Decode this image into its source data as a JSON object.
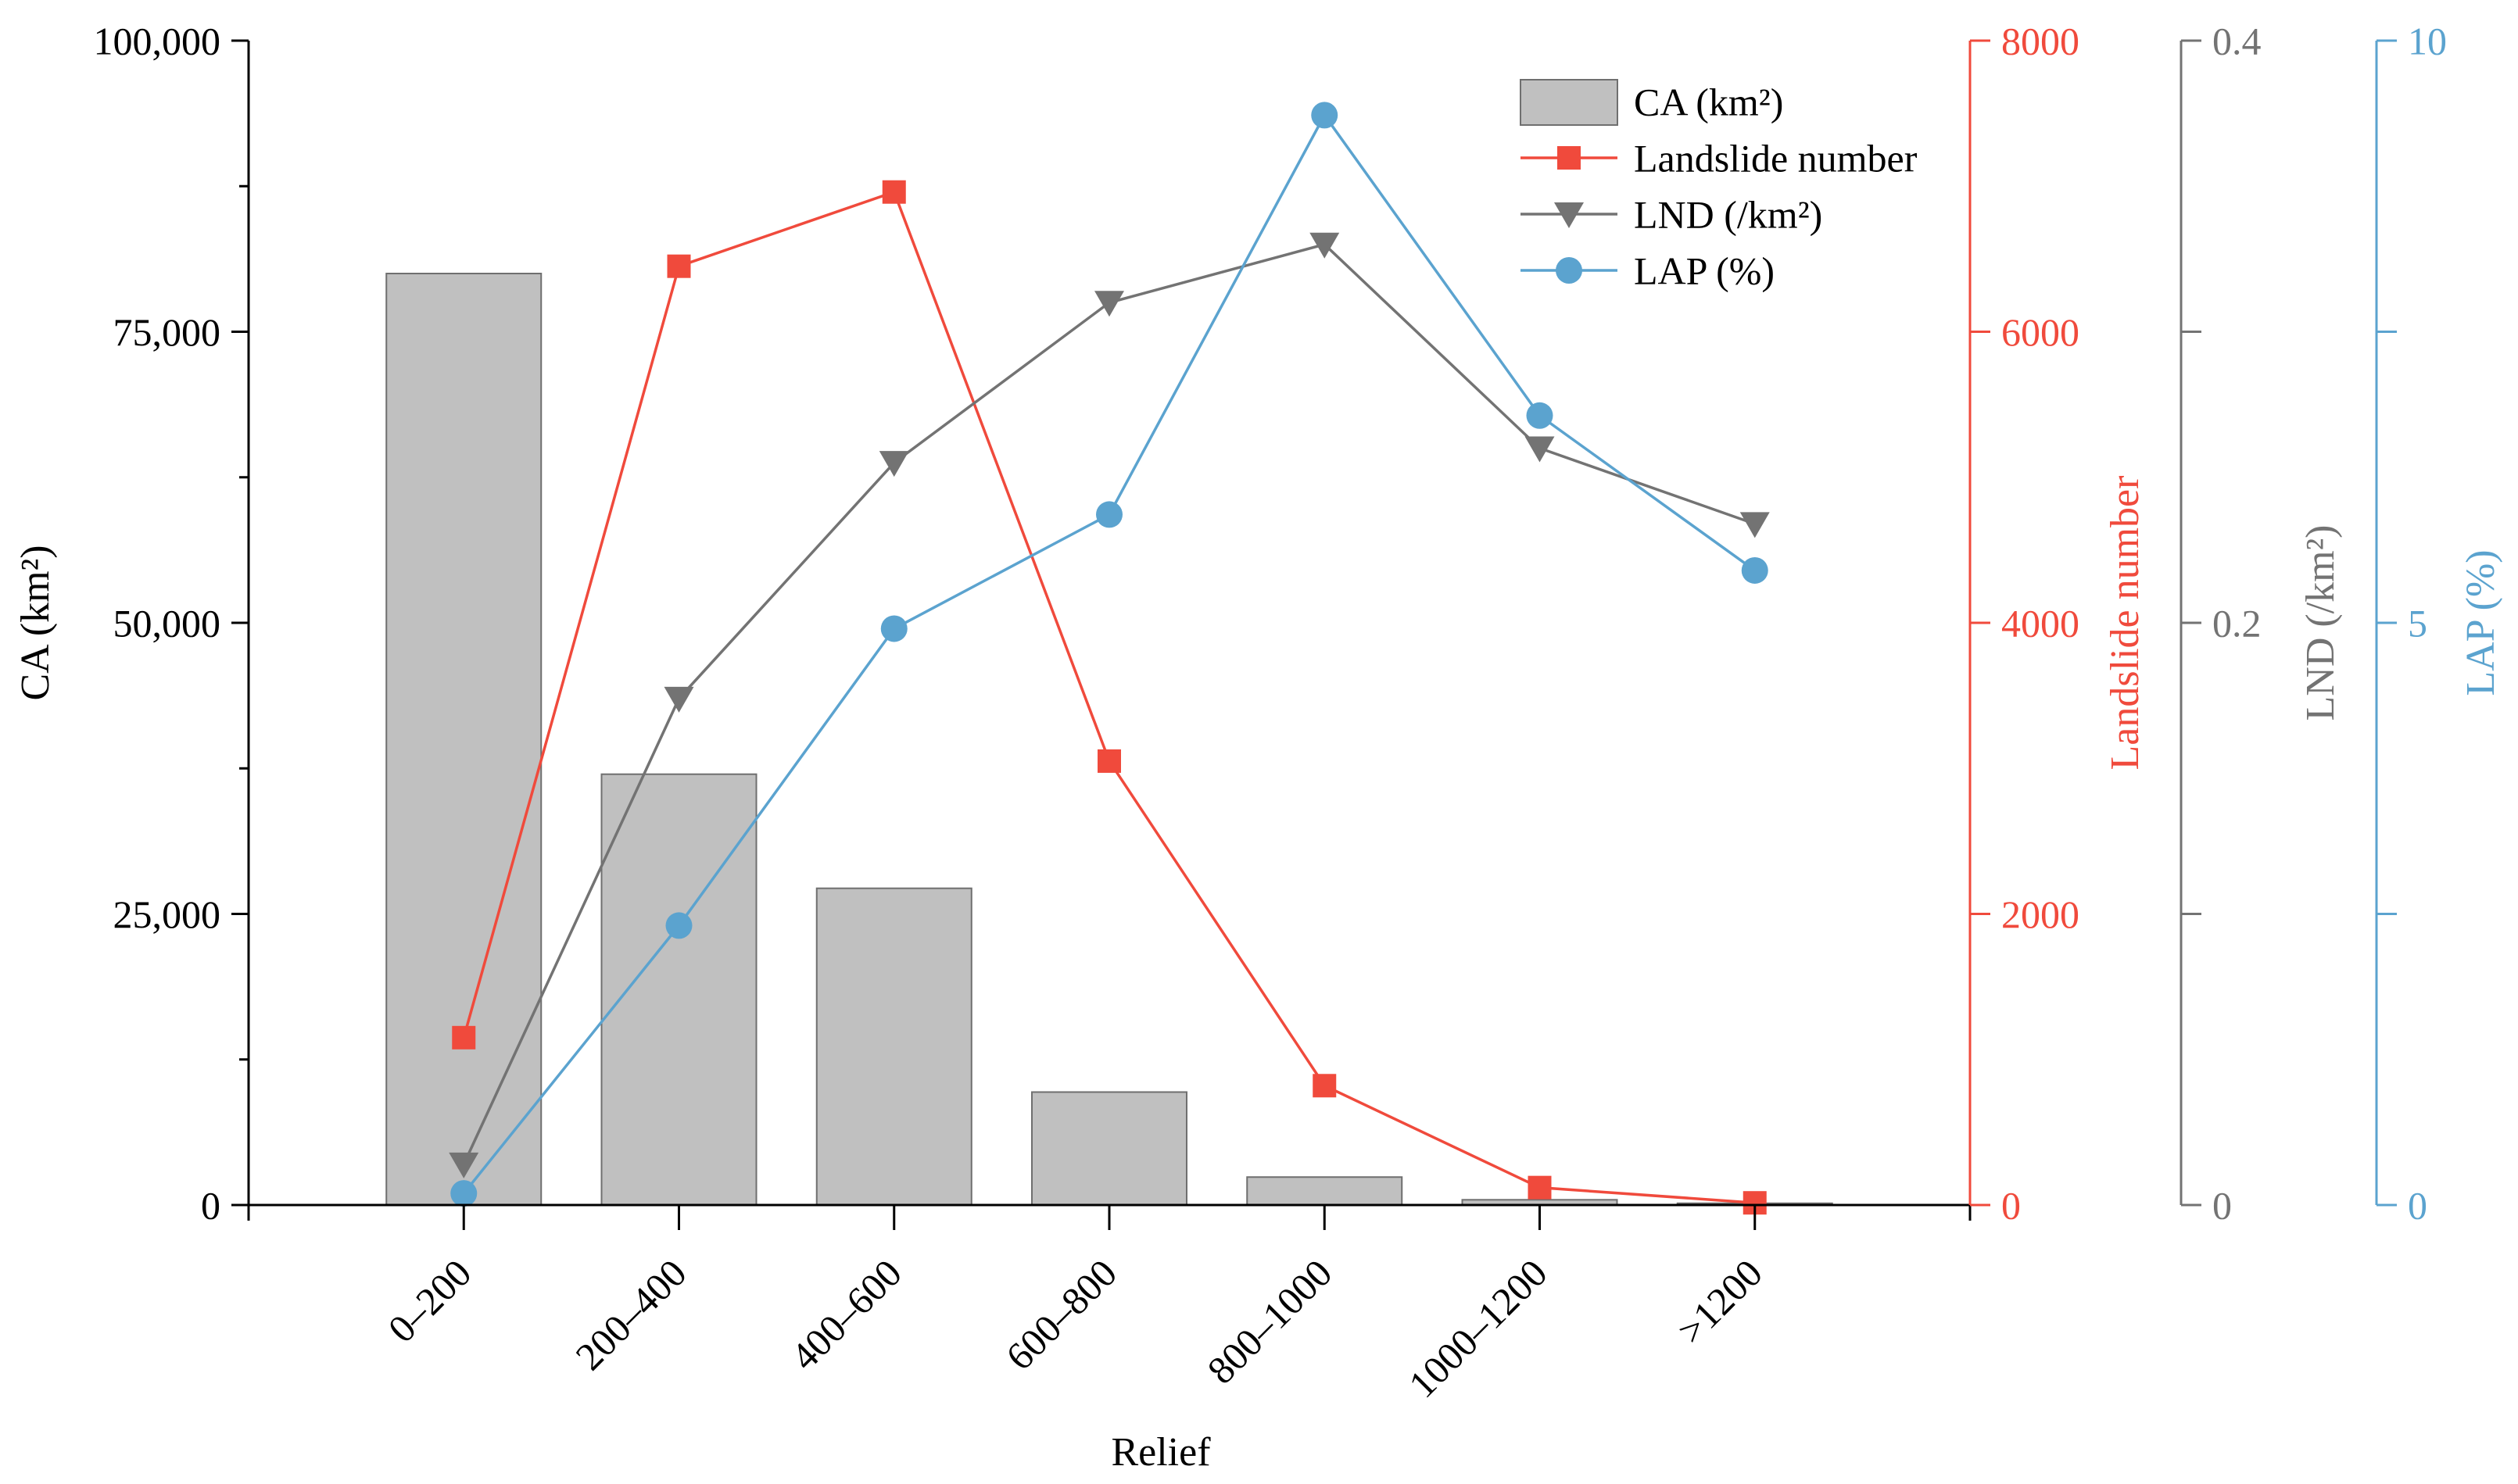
{
  "chart_data": {
    "type": "bar+line",
    "xlabel": "Relief",
    "categories": [
      "0–200",
      "200–400",
      "400–600",
      "600–800",
      "800–1000",
      "1000–1200",
      ">1200"
    ],
    "colors": {
      "bar": "#c0c0c0",
      "bar_edge": "#6f6f6f",
      "landslide": "#f04a3c",
      "lnd": "#737373",
      "lap": "#5ba3cf",
      "axis": "#000000"
    },
    "axes": {
      "left": {
        "label": "CA (km²)",
        "ylim": [
          0,
          100000
        ],
        "ticks": [
          0,
          25000,
          50000,
          75000,
          100000
        ],
        "tick_labels": [
          "0",
          "25,000",
          "50,000",
          "75,000",
          "100,000"
        ]
      },
      "right1": {
        "label": "Landslide number",
        "ylim": [
          0,
          8000
        ],
        "ticks": [
          0,
          2000,
          4000,
          6000,
          8000
        ],
        "tick_labels": [
          "0",
          "2000",
          "4000",
          "6000",
          "8000"
        ]
      },
      "right2": {
        "label": "LND (/km²)",
        "ylim": [
          0,
          0.4
        ],
        "ticks": [
          0,
          0.1,
          0.2,
          0.3,
          0.4
        ],
        "tick_labels": [
          "0",
          "",
          "0.2",
          "",
          "0.4"
        ]
      },
      "right3": {
        "label": "LAP (%)",
        "ylim": [
          0,
          10
        ],
        "ticks": [
          0,
          2.5,
          5,
          7.5,
          10
        ],
        "tick_labels": [
          "0",
          "",
          "5",
          "",
          "10"
        ]
      }
    },
    "series": [
      {
        "name": "CA (km²)",
        "kind": "bar",
        "axis": "left",
        "values": [
          80000,
          37000,
          27200,
          9700,
          2400,
          450,
          150
        ]
      },
      {
        "name": "Landslide number",
        "kind": "line",
        "marker": "square",
        "axis": "right1",
        "values": [
          1150,
          6450,
          6960,
          3050,
          820,
          120,
          15
        ]
      },
      {
        "name": "LND (/km²)",
        "kind": "line",
        "marker": "triangle-down",
        "axis": "right2",
        "values": [
          0.014,
          0.174,
          0.255,
          0.31,
          0.33,
          0.26,
          0.234
        ]
      },
      {
        "name": "LAP (%)",
        "kind": "line",
        "marker": "circle",
        "axis": "right3",
        "values": [
          0.1,
          2.4,
          4.95,
          5.93,
          9.36,
          6.78,
          5.45
        ]
      }
    ],
    "legend": {
      "position": "top-right",
      "entries": [
        "CA (km²)",
        "Landslide number",
        "LND (/km²)",
        "LAP (%)"
      ]
    }
  }
}
